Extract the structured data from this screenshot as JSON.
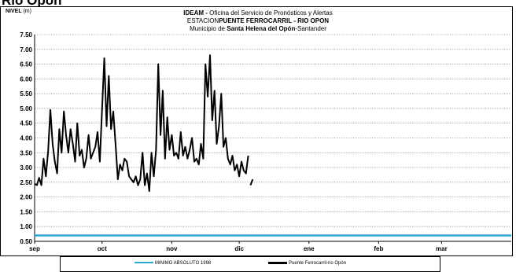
{
  "page": {
    "title": "Río Opón"
  },
  "header": {
    "line1_bold": "IDEAM -",
    "line1_rest": " Oficina del Servicio de Pronósticos y Alertas",
    "line2_pre": "ESTACION",
    "line2_bold": "PUENTE FERROCARRIL - RIO OPON",
    "line3_pre": "Municipio de ",
    "line3_bold": "Santa Helena del Opón",
    "line3_post": "-Santander"
  },
  "axis": {
    "y_label": "NIVEL",
    "y_unit": "(m)"
  },
  "colors": {
    "minimum": "#2aa8d6",
    "series": "#000000",
    "grid": "#7f7f7f"
  },
  "chart_data": {
    "type": "line",
    "x_axis": {
      "type": "date",
      "range": [
        "1998-09-01",
        "1999-03-31"
      ],
      "tick_labels": [
        "sep",
        "oct",
        "nov",
        "dic",
        "ene",
        "feb",
        "mar"
      ],
      "tick_dates": [
        "1998-09-01",
        "1998-10-01",
        "1998-11-01",
        "1998-12-01",
        "1999-01-01",
        "1999-02-01",
        "1999-03-01"
      ]
    },
    "y_axis": {
      "label": "NIVEL (m)",
      "ylim": [
        0.5,
        7.5
      ],
      "ticks": [
        0.5,
        1.0,
        1.5,
        2.0,
        2.5,
        3.0,
        3.5,
        4.0,
        4.5,
        5.0,
        5.5,
        6.0,
        6.5,
        7.0,
        7.5
      ],
      "tick_labels": [
        "0.50",
        "1.00",
        "1.50",
        "2.00",
        "2.50",
        "3.00",
        "3.50",
        "4.00",
        "4.50",
        "5.00",
        "5.50",
        "6.00",
        "6.50",
        "7.00",
        "7.50"
      ]
    },
    "grid": true,
    "legend_position": "bottom",
    "series": [
      {
        "name": "MINIMO ABSOLUTO 1998",
        "x": [
          "1998-09-01",
          "1999-03-31"
        ],
        "y": [
          0.7,
          0.7
        ]
      },
      {
        "name": "Puente Ferrocarril-rio Opón",
        "x": [
          "1998-09-01",
          "1998-09-02",
          "1998-09-03",
          "1998-09-04",
          "1998-09-05",
          "1998-09-06",
          "1998-09-07",
          "1998-09-08",
          "1998-09-09",
          "1998-09-10",
          "1998-09-11",
          "1998-09-12",
          "1998-09-13",
          "1998-09-14",
          "1998-09-15",
          "1998-09-16",
          "1998-09-17",
          "1998-09-18",
          "1998-09-19",
          "1998-09-20",
          "1998-09-21",
          "1998-09-22",
          "1998-09-23",
          "1998-09-24",
          "1998-09-25",
          "1998-09-26",
          "1998-09-27",
          "1998-09-28",
          "1998-09-29",
          "1998-09-30",
          "1998-10-01",
          "1998-10-02",
          "1998-10-03",
          "1998-10-04",
          "1998-10-05",
          "1998-10-06",
          "1998-10-07",
          "1998-10-08",
          "1998-10-09",
          "1998-10-10",
          "1998-10-11",
          "1998-10-12",
          "1998-10-13",
          "1998-10-14",
          "1998-10-15",
          "1998-10-16",
          "1998-10-17",
          "1998-10-18",
          "1998-10-19",
          "1998-10-20",
          "1998-10-21",
          "1998-10-22",
          "1998-10-23",
          "1998-10-24",
          "1998-10-25",
          "1998-10-26",
          "1998-10-27",
          "1998-10-28",
          "1998-10-29",
          "1998-10-30",
          "1998-10-31",
          "1998-11-01",
          "1998-11-02",
          "1998-11-03",
          "1998-11-04",
          "1998-11-05",
          "1998-11-06",
          "1998-11-07",
          "1998-11-08",
          "1998-11-09",
          "1998-11-10",
          "1998-11-11",
          "1998-11-12",
          "1998-11-13",
          "1998-11-14",
          "1998-11-15",
          "1998-11-16",
          "1998-11-17",
          "1998-11-18",
          "1998-11-19",
          "1998-11-20",
          "1998-11-21",
          "1998-11-22",
          "1998-11-23",
          "1998-11-24",
          "1998-11-25",
          "1998-11-26",
          "1998-11-27",
          "1998-11-28",
          "1998-11-29",
          "1998-11-30",
          "1998-12-01",
          "1998-12-02",
          "1998-12-03",
          "1998-12-04",
          "1998-12-05"
        ],
        "y": [
          2.45,
          2.4,
          2.65,
          2.4,
          3.3,
          2.7,
          3.55,
          4.95,
          3.8,
          3.2,
          2.8,
          4.3,
          3.5,
          4.9,
          4.1,
          3.5,
          4.3,
          3.8,
          3.2,
          4.5,
          3.4,
          3.6,
          3.0,
          3.3,
          4.1,
          3.3,
          3.5,
          3.7,
          4.2,
          3.2,
          5.0,
          6.7,
          4.4,
          6.1,
          4.3,
          4.9,
          3.8,
          2.6,
          3.1,
          2.9,
          3.3,
          3.2,
          2.7,
          2.6,
          2.5,
          2.7,
          2.4,
          2.6,
          3.5,
          2.4,
          2.8,
          2.2,
          3.5,
          2.7,
          3.6,
          6.5,
          4.1,
          5.6,
          3.3,
          4.7,
          3.6,
          4.1,
          3.4,
          3.5,
          3.3,
          4.2,
          3.4,
          3.7,
          3.3,
          3.6,
          4.0,
          3.2,
          3.3,
          3.1,
          3.8,
          3.3,
          6.5,
          5.4,
          6.8,
          4.6,
          5.6,
          3.8,
          4.4,
          5.5,
          3.7,
          4.0,
          3.3,
          3.1,
          3.4,
          2.9,
          3.1,
          2.7,
          3.2,
          2.9,
          2.8,
          3.4
        ]
      },
      {
        "name": "Puente Ferrocarril-rio Opón (tail)",
        "x": [
          "1998-12-06",
          "1998-12-07"
        ],
        "y": [
          2.4,
          2.6
        ]
      }
    ]
  },
  "legend": {
    "items": [
      {
        "label": "MINIMO ABSOLUTO 1998"
      },
      {
        "label": "Puente Ferrocarril-rio Opón"
      }
    ]
  }
}
